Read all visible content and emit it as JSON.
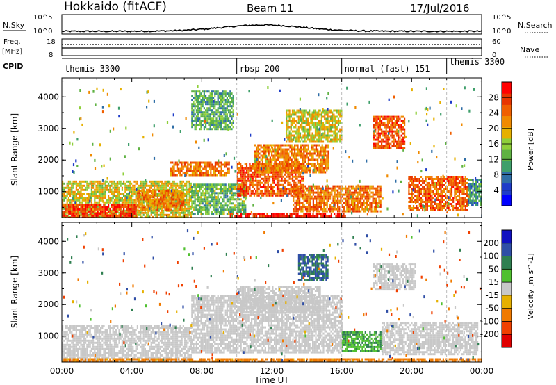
{
  "header": {
    "station": "Hokkaido (fitACF)",
    "beam": "Beam 11",
    "date": "17/Jul/2016"
  },
  "noise_panel": {
    "left_label": "N.Sky",
    "right_label": "N.Search",
    "left_ticks": [
      "10^5",
      "10^0"
    ],
    "right_ticks": [
      "10^5",
      "10^0"
    ]
  },
  "freq_panel": {
    "label_line1": "Freq.",
    "label_line2": "[MHz]",
    "left_ticks": [
      "18",
      "8"
    ],
    "right_ticks": [
      "60",
      "0"
    ],
    "right_label": "Nave"
  },
  "cpid_panel": {
    "label": "CPID",
    "segments": [
      {
        "name": "themis 3300",
        "start_hour": 0
      },
      {
        "name": "rbsp 200",
        "start_hour": 10
      },
      {
        "name": "normal (fast) 151",
        "start_hour": 16
      },
      {
        "name": "themis 3300",
        "start_hour": 22
      }
    ]
  },
  "chart_data": [
    {
      "type": "heatmap",
      "title": "",
      "xlabel": "Time UT",
      "ylabel": "Slant Range [km]",
      "xlim_hours": [
        0,
        24
      ],
      "ylim": [
        180,
        4600
      ],
      "yticks": [
        1000,
        2000,
        3000,
        4000
      ],
      "colorbar": {
        "label": "Power [dB]",
        "ticks": [
          4,
          8,
          12,
          16,
          20,
          24,
          28
        ],
        "range": [
          0,
          32
        ],
        "colors": [
          "#0000ff",
          "#1e3cc8",
          "#2f6ea6",
          "#3f9f6b",
          "#5fb243",
          "#8fcf3a",
          "#e6b000",
          "#f08a00",
          "#f05f00",
          "#e83500",
          "#ff0000"
        ]
      },
      "regions": [
        {
          "t0": 0.0,
          "t1": 7.4,
          "r0": 200,
          "r1": 1350,
          "level": 18
        },
        {
          "t0": 0.0,
          "t1": 4.2,
          "r0": 200,
          "r1": 600,
          "level": 28
        },
        {
          "t0": 4.3,
          "t1": 7.0,
          "r0": 400,
          "r1": 1050,
          "level": 23
        },
        {
          "t0": 6.2,
          "t1": 9.6,
          "r0": 1500,
          "r1": 1950,
          "level": 24
        },
        {
          "t0": 7.4,
          "t1": 10.5,
          "r0": 300,
          "r1": 1250,
          "level": 13
        },
        {
          "t0": 10.0,
          "t1": 13.8,
          "r0": 900,
          "r1": 1900,
          "level": 26
        },
        {
          "t0": 11.0,
          "t1": 15.2,
          "r0": 1600,
          "r1": 2500,
          "level": 23
        },
        {
          "t0": 12.8,
          "t1": 16.0,
          "r0": 2600,
          "r1": 3600,
          "level": 18
        },
        {
          "t0": 9.6,
          "t1": 16.2,
          "r0": 200,
          "r1": 320,
          "level": 30
        },
        {
          "t0": 13.2,
          "t1": 18.2,
          "r0": 400,
          "r1": 1200,
          "level": 24
        },
        {
          "t0": 17.8,
          "t1": 19.6,
          "r0": 2400,
          "r1": 3400,
          "level": 26
        },
        {
          "t0": 19.8,
          "t1": 23.2,
          "r0": 400,
          "r1": 1500,
          "level": 25
        },
        {
          "t0": 23.2,
          "t1": 24.0,
          "r0": 600,
          "r1": 1400,
          "level": 10
        },
        {
          "t0": 7.4,
          "t1": 9.8,
          "r0": 3000,
          "r1": 4200,
          "level": 12
        }
      ]
    },
    {
      "type": "heatmap",
      "title": "",
      "xlabel": "Time UT",
      "ylabel": "Slant Range [km]",
      "xlim_hours": [
        0,
        24
      ],
      "ylim": [
        180,
        4600
      ],
      "yticks": [
        1000,
        2000,
        3000,
        4000
      ],
      "xticks": [
        "00:00",
        "04:00",
        "08:00",
        "12:00",
        "16:00",
        "20:00",
        "00:00"
      ],
      "colorbar": {
        "label": "Velocity [m s^-1]",
        "ticks": [
          "200",
          "100",
          "50",
          "15",
          "-15",
          "-50",
          "-100",
          "-200"
        ],
        "colors": [
          "#1010c0",
          "#2f4ea6",
          "#2f7f50",
          "#50c030",
          "#c8c8c8",
          "#e6b000",
          "#f07a00",
          "#f04000",
          "#e00000"
        ]
      },
      "regions": [
        {
          "t0": 0.0,
          "t1": 7.4,
          "r0": 200,
          "r1": 1350,
          "level": 0
        },
        {
          "t0": 7.4,
          "t1": 16.0,
          "r0": 500,
          "r1": 2300,
          "level": 0
        },
        {
          "t0": 10.0,
          "t1": 14.8,
          "r0": 1800,
          "r1": 2600,
          "level": 0
        },
        {
          "t0": 13.5,
          "t1": 15.2,
          "r0": 2800,
          "r1": 3600,
          "level": 75
        },
        {
          "t0": 16.0,
          "t1": 18.3,
          "r0": 500,
          "r1": 1150,
          "level": 30
        },
        {
          "t0": 18.3,
          "t1": 23.8,
          "r0": 400,
          "r1": 1450,
          "level": 0
        },
        {
          "t0": 17.8,
          "t1": 20.2,
          "r0": 2500,
          "r1": 3300,
          "level": 0
        },
        {
          "t0": 0.0,
          "t1": 24.0,
          "r0": 180,
          "r1": 300,
          "level": -40
        }
      ]
    }
  ]
}
